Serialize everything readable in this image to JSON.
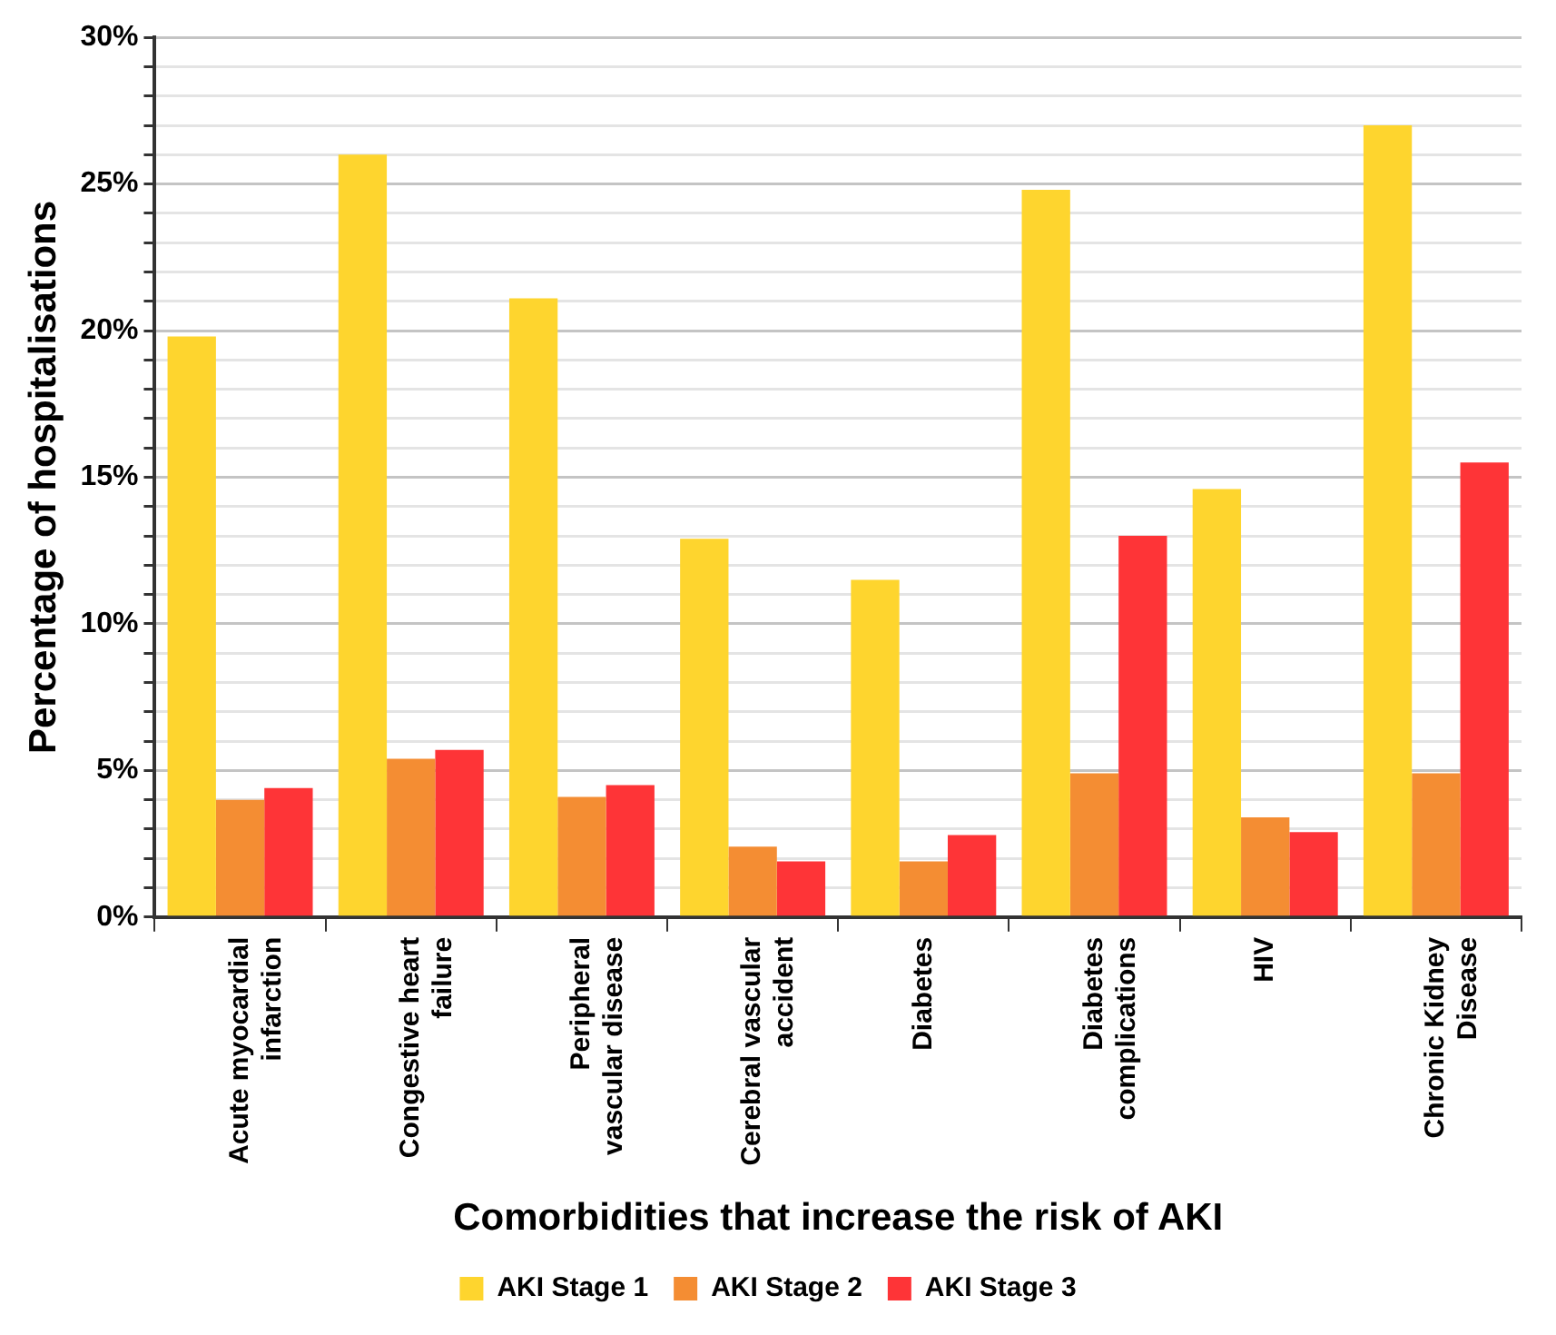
{
  "chart_data": {
    "type": "bar",
    "xlabel": "Comorbidities that increase the risk of AKI",
    "ylabel": "Percentage of hospitalisations",
    "categories": [
      "Acute myocardial infarction",
      "Congestive heart failure",
      "Peripheral vascular disease",
      "Cerebral vascular accident",
      "Diabetes",
      "Diabetes complications",
      "HIV",
      "Chronic Kidney Disease"
    ],
    "series": [
      {
        "name": "AKI Stage 1",
        "color": "#fed52e",
        "values": [
          19.8,
          26.0,
          21.1,
          12.9,
          11.5,
          24.8,
          14.6,
          27.0
        ]
      },
      {
        "name": "AKI Stage 2",
        "color": "#f48d33",
        "values": [
          4.0,
          5.4,
          4.1,
          2.4,
          1.9,
          4.9,
          3.4,
          4.9
        ]
      },
      {
        "name": "AKI Stage 3",
        "color": "#fe3437",
        "values": [
          4.4,
          5.7,
          4.5,
          1.9,
          2.8,
          13.0,
          2.9,
          15.5
        ]
      }
    ],
    "ylim": [
      0,
      30
    ],
    "yticks": [
      {
        "value": 0,
        "label": "0%"
      },
      {
        "value": 1,
        "label": null
      },
      {
        "value": 2,
        "label": null
      },
      {
        "value": 3,
        "label": null
      },
      {
        "value": 4,
        "label": null
      },
      {
        "value": 5,
        "label": "5%"
      },
      {
        "value": 6,
        "label": null
      },
      {
        "value": 7,
        "label": null
      },
      {
        "value": 8,
        "label": null
      },
      {
        "value": 9,
        "label": null
      },
      {
        "value": 10,
        "label": "10%"
      },
      {
        "value": 11,
        "label": null
      },
      {
        "value": 12,
        "label": null
      },
      {
        "value": 13,
        "label": null
      },
      {
        "value": 14,
        "label": null
      },
      {
        "value": 15,
        "label": "15%"
      },
      {
        "value": 16,
        "label": null
      },
      {
        "value": 17,
        "label": null
      },
      {
        "value": 18,
        "label": null
      },
      {
        "value": 19,
        "label": null
      },
      {
        "value": 20,
        "label": "20%"
      },
      {
        "value": 21,
        "label": null
      },
      {
        "value": 22,
        "label": null
      },
      {
        "value": 23,
        "label": null
      },
      {
        "value": 24,
        "label": null
      },
      {
        "value": 25,
        "label": "25%"
      },
      {
        "value": 26,
        "label": null
      },
      {
        "value": 27,
        "label": null
      },
      {
        "value": 28,
        "label": null
      },
      {
        "value": 29,
        "label": null
      },
      {
        "value": 30,
        "label": "30%"
      }
    ],
    "grid": "y",
    "legend": "bottom"
  }
}
